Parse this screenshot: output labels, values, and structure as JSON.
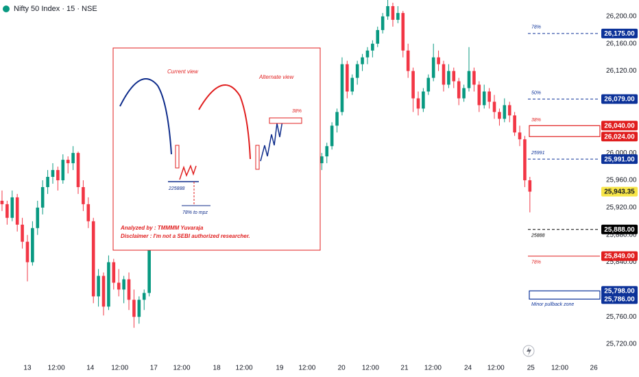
{
  "chart_data": {
    "type": "candlestick",
    "title": "Nifty 50 Index · 15 · NSE",
    "up_color": "#089981",
    "down_color": "#f23645",
    "ylim": [
      25692,
      26224
    ],
    "xlim": [
      -0.4,
      117.8
    ],
    "yticks": [
      {
        "value": 26200,
        "label": "26,200.00"
      },
      {
        "value": 26160,
        "label": "26,160.00"
      },
      {
        "value": 26120,
        "label": "26,120.00"
      },
      {
        "value": 26080,
        "label": "26,080.00"
      },
      {
        "value": 26040,
        "label": "26,040.00"
      },
      {
        "value": 26000,
        "label": "26,000.00"
      },
      {
        "value": 25960,
        "label": "25,960.00"
      },
      {
        "value": 25920,
        "label": "25,920.00"
      },
      {
        "value": 25880,
        "label": "25,880.00"
      },
      {
        "value": 25840,
        "label": "25,840.00"
      },
      {
        "value": 25800,
        "label": "25,800.00"
      },
      {
        "value": 25760,
        "label": "25,760.00"
      },
      {
        "value": 25720,
        "label": "25,720.00"
      }
    ],
    "xticks": [
      {
        "value": 5,
        "label": "13"
      },
      {
        "value": 10.7,
        "label": "12:00"
      },
      {
        "value": 17.4,
        "label": "14"
      },
      {
        "value": 23.2,
        "label": "12:00"
      },
      {
        "value": 29.9,
        "label": "17"
      },
      {
        "value": 35.4,
        "label": "12:00"
      },
      {
        "value": 42.3,
        "label": "18"
      },
      {
        "value": 47.7,
        "label": "12:00"
      },
      {
        "value": 54.7,
        "label": "19"
      },
      {
        "value": 60.1,
        "label": "12:00"
      },
      {
        "value": 66.9,
        "label": "20"
      },
      {
        "value": 72.6,
        "label": "12:00"
      },
      {
        "value": 79.3,
        "label": "21"
      },
      {
        "value": 84.9,
        "label": "12:00"
      },
      {
        "value": 91.8,
        "label": "24"
      },
      {
        "value": 97.3,
        "label": "12:00"
      },
      {
        "value": 104.2,
        "label": "25"
      },
      {
        "value": 109.9,
        "label": "12:00"
      },
      {
        "value": 116.6,
        "label": "26"
      }
    ],
    "candles": [
      [
        25930,
        25945,
        25915,
        25925
      ],
      [
        25925,
        25930,
        25895,
        25905
      ],
      [
        25905,
        25945,
        25900,
        25935
      ],
      [
        25935,
        25940,
        25885,
        25895
      ],
      [
        25895,
        25905,
        25860,
        25870
      ],
      [
        25870,
        25880,
        25812,
        25840
      ],
      [
        25840,
        25900,
        25835,
        25890
      ],
      [
        25890,
        25930,
        25880,
        25920
      ],
      [
        25920,
        25960,
        25910,
        25950
      ],
      [
        25950,
        25975,
        25940,
        25965
      ],
      [
        25965,
        25985,
        25955,
        25975
      ],
      [
        25975,
        25980,
        25945,
        25960
      ],
      [
        25960,
        25998,
        25955,
        25990
      ],
      [
        25990,
        25995,
        25970,
        25985
      ],
      [
        25985,
        26010,
        25975,
        26000
      ],
      [
        26000,
        26002,
        25940,
        25950
      ],
      [
        25950,
        25960,
        25915,
        25925
      ],
      [
        25925,
        25935,
        25890,
        25900
      ],
      [
        25900,
        25905,
        25780,
        25790
      ],
      [
        25790,
        25830,
        25775,
        25820
      ],
      [
        25820,
        25825,
        25762,
        25775
      ],
      [
        25775,
        25850,
        25770,
        25840
      ],
      [
        25840,
        25845,
        25800,
        25810
      ],
      [
        25810,
        25830,
        25790,
        25800
      ],
      [
        25800,
        25820,
        25780,
        25815
      ],
      [
        25815,
        25825,
        25770,
        25785
      ],
      [
        25785,
        25800,
        25744,
        25760
      ],
      [
        25760,
        25790,
        25750,
        25785
      ],
      [
        25785,
        25800,
        25770,
        25795
      ],
      [
        25795,
        25890,
        25790,
        25883
      ],
      [
        25883,
        25900,
        25870,
        25895
      ],
      [
        25895,
        25910,
        25880,
        25890
      ],
      [
        25890,
        25915,
        25885,
        25910
      ],
      [
        25910,
        25920,
        25895,
        25900
      ],
      [
        25900,
        25925,
        25890,
        25920
      ],
      [
        25920,
        25935,
        25910,
        25915
      ],
      [
        25915,
        25930,
        25900,
        25925
      ],
      [
        25925,
        25940,
        25915,
        25935
      ],
      [
        25935,
        25945,
        25920,
        25925
      ],
      [
        25925,
        25940,
        25910,
        25930
      ],
      [
        25930,
        25950,
        25925,
        25945
      ],
      [
        25945,
        25955,
        25930,
        25935
      ],
      [
        25935,
        25945,
        25915,
        25920
      ],
      [
        25920,
        25930,
        25895,
        25905
      ],
      [
        25905,
        25915,
        25880,
        25890
      ],
      [
        25890,
        25900,
        25870,
        25885
      ],
      [
        25885,
        25905,
        25875,
        25900
      ],
      [
        25900,
        25920,
        25890,
        25915
      ],
      [
        25915,
        25925,
        25900,
        25910
      ],
      [
        25910,
        25930,
        25905,
        25925
      ],
      [
        25925,
        25935,
        25910,
        25915
      ],
      [
        25915,
        25920,
        25880,
        25890
      ],
      [
        25890,
        25900,
        25858,
        25875
      ],
      [
        25875,
        25905,
        25870,
        25900
      ],
      [
        25900,
        25925,
        25895,
        25920
      ],
      [
        25920,
        25940,
        25915,
        25935
      ],
      [
        25935,
        25950,
        25925,
        25945
      ],
      [
        25945,
        25960,
        25935,
        25955
      ],
      [
        25955,
        25970,
        25945,
        25950
      ],
      [
        25950,
        25965,
        25940,
        25960
      ],
      [
        25960,
        25980,
        25955,
        25975
      ],
      [
        25975,
        25985,
        25960,
        25970
      ],
      [
        25970,
        25990,
        25965,
        25985
      ],
      [
        25985,
        26000,
        25975,
        25995
      ],
      [
        25995,
        26015,
        25985,
        26010
      ],
      [
        26010,
        26045,
        26005,
        26040
      ],
      [
        26040,
        26065,
        26030,
        26060
      ],
      [
        26060,
        26140,
        26055,
        26130
      ],
      [
        26130,
        26135,
        26080,
        26090
      ],
      [
        26090,
        26115,
        26085,
        26110
      ],
      [
        26110,
        26135,
        26100,
        26130
      ],
      [
        26130,
        26145,
        26120,
        26140
      ],
      [
        26140,
        26155,
        26130,
        26150
      ],
      [
        26150,
        26165,
        26140,
        26160
      ],
      [
        26160,
        26185,
        26155,
        26180
      ],
      [
        26180,
        26205,
        26175,
        26200
      ],
      [
        26200,
        26224,
        26195,
        26215
      ],
      [
        26215,
        26220,
        26185,
        26195
      ],
      [
        26195,
        26215,
        26190,
        26205
      ],
      [
        26205,
        26208,
        26140,
        26150
      ],
      [
        26150,
        26160,
        26110,
        26120
      ],
      [
        26120,
        26125,
        26060,
        26080
      ],
      [
        26080,
        26090,
        26055,
        26065
      ],
      [
        26065,
        26095,
        26060,
        26090
      ],
      [
        26090,
        26115,
        26085,
        26110
      ],
      [
        26110,
        26160,
        26105,
        26140
      ],
      [
        26140,
        26150,
        26120,
        26130
      ],
      [
        26130,
        26135,
        26090,
        26100
      ],
      [
        26100,
        26130,
        26095,
        26120
      ],
      [
        26120,
        26125,
        26095,
        26105
      ],
      [
        26105,
        26110,
        26070,
        26080
      ],
      [
        26080,
        26100,
        26075,
        26095
      ],
      [
        26095,
        26155,
        26090,
        26120
      ],
      [
        26120,
        26125,
        26090,
        26100
      ],
      [
        26100,
        26105,
        26060,
        26070
      ],
      [
        26070,
        26100,
        26065,
        26090
      ],
      [
        26090,
        26095,
        26065,
        26075
      ],
      [
        26075,
        26085,
        26050,
        26060
      ],
      [
        26060,
        26065,
        26040,
        26050
      ],
      [
        26050,
        26080,
        26045,
        26070
      ],
      [
        26070,
        26075,
        26045,
        26055
      ],
      [
        26055,
        26060,
        26025,
        26030
      ],
      [
        26030,
        26040,
        26010,
        26020
      ],
      [
        26020,
        26025,
        25950,
        25960
      ],
      [
        25960,
        25965,
        25913,
        25943.35
      ]
    ],
    "levels": [
      {
        "value": 26175,
        "label": "26,175.00",
        "tag": "78%",
        "color": "#0c3299",
        "style": "dashed"
      },
      {
        "value": 26079,
        "label": "26,079.00",
        "tag": "50%",
        "color": "#0c3299",
        "style": "dashed"
      },
      {
        "value": 25991,
        "label": "25,991.00",
        "tag": "25991",
        "color": "#0c3299",
        "style": "dashed"
      },
      {
        "value": 25888,
        "label": "25,888.00",
        "tag": "25888",
        "color": "#000000",
        "style": "dashed"
      },
      {
        "value": 25849,
        "label": "25,849.00",
        "tag": "78%",
        "color": "#e01e1e",
        "style": "solid"
      }
    ],
    "zones": [
      {
        "top": 26040,
        "bottom": 26024,
        "top_label": "26,040.00",
        "bottom_label": "26,024.00",
        "tag": "38%",
        "color": "#e01e1e"
      },
      {
        "top": 25798,
        "bottom": 25786,
        "top_label": "25,798.00",
        "bottom_label": "25,786.00",
        "tag": "Minor pullback zone",
        "color": "#0c3299"
      }
    ],
    "last_price": {
      "value": 25943.35,
      "label": "25,943.35",
      "color": "#f7e547"
    },
    "inset": {
      "current_view": "Current view",
      "alternate_view": "Alternate view",
      "fib": "38%",
      "level": "225888",
      "target": "78% to mpz",
      "analyst": "Analyzed by : TMMMM Yuvaraja",
      "disclaimer": "Disclaimer : I'm not a SEBI authorized researcher."
    }
  }
}
